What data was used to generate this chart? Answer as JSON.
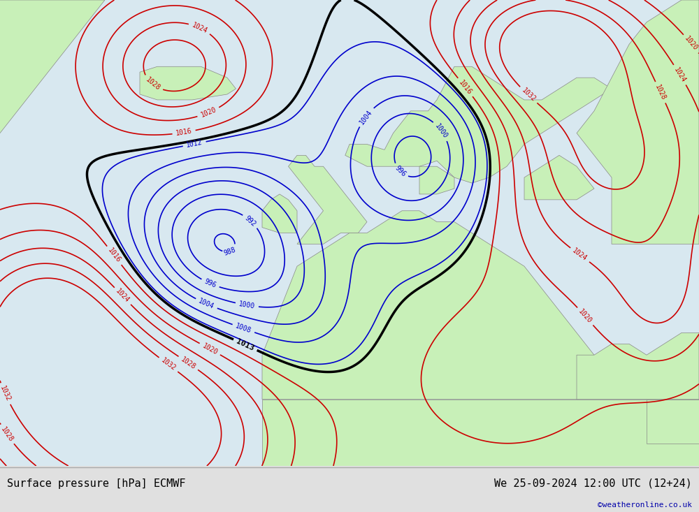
{
  "title_left": "Surface pressure [hPa] ECMWF",
  "title_right": "We 25-09-2024 12:00 UTC (12+24)",
  "watermark": "©weatheronline.co.uk",
  "background_color": "#e0e0e0",
  "land_color": "#c8f0b8",
  "sea_color": "#d8e8f0",
  "bottom_bar_color": "#d0d0d0",
  "contour_levels_blue": [
    988,
    992,
    996,
    1000,
    1004,
    1008,
    1012
  ],
  "contour_levels_red": [
    1016,
    1020,
    1024,
    1028,
    1032
  ],
  "contour_levels_black": [
    1013
  ],
  "contour_color_blue": "#0000cc",
  "contour_color_red": "#cc0000",
  "contour_color_black": "#000000",
  "contour_linewidth_blue": 1.2,
  "contour_linewidth_red": 1.2,
  "contour_linewidth_black": 2.5,
  "label_fontsize": 7,
  "black_label_fontsize": 8,
  "title_fontsize": 11,
  "watermark_fontsize": 8,
  "lon_min": -40,
  "lon_max": 40,
  "lat_min": 30,
  "lat_max": 72
}
